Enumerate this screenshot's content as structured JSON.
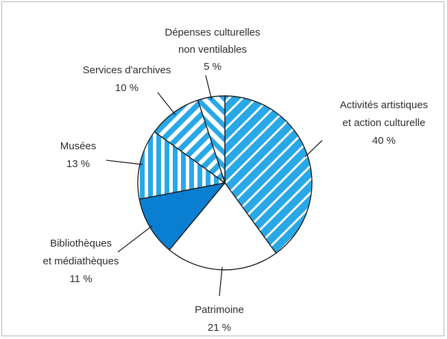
{
  "chart_data": {
    "type": "pie",
    "title": "",
    "colors": {
      "blue": "#29a8e8",
      "dark_blue": "#0a7fd1",
      "outline": "#1a1a1a",
      "white": "#ffffff",
      "leader": "#1a1a1a"
    },
    "slices": [
      {
        "name": "Activités artistiques et action culturelle",
        "label_lines": [
          "Activités artistiques",
          "et action culturelle"
        ],
        "pct_label": "40 %",
        "value": 40,
        "fill": "diagonal-stripes"
      },
      {
        "name": "Patrimoine",
        "label_lines": [
          "Patrimoine"
        ],
        "pct_label": "21 %",
        "value": 21,
        "fill": "white"
      },
      {
        "name": "Bibliothèques et médiathèques",
        "label_lines": [
          "Bibliothèques",
          "et médiathèques"
        ],
        "pct_label": "11 %",
        "value": 11,
        "fill": "solid-dark-blue"
      },
      {
        "name": "Musées",
        "label_lines": [
          "Musées"
        ],
        "pct_label": "13 %",
        "value": 13,
        "fill": "vertical-stripes"
      },
      {
        "name": "Services d'archives",
        "label_lines": [
          "Services d'archives"
        ],
        "pct_label": "10 %",
        "value": 10,
        "fill": "thick-diagonal-stripes"
      },
      {
        "name": "Dépenses culturelles non ventilables",
        "label_lines": [
          "Dépenses culturelles",
          "non ventilables"
        ],
        "pct_label": "5 %",
        "value": 5,
        "fill": "thick-diagonal-stripes-left"
      }
    ]
  }
}
